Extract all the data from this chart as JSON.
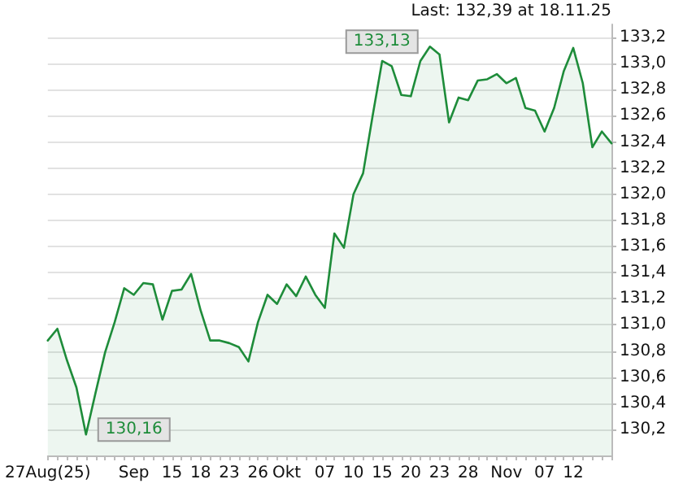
{
  "chart_data": {
    "type": "area",
    "categories": [
      "27Aug(25)",
      null,
      null,
      null,
      null,
      null,
      null,
      null,
      null,
      "Sep",
      null,
      null,
      null,
      "15",
      null,
      null,
      "18",
      null,
      null,
      "23",
      null,
      null,
      "26",
      null,
      null,
      "Okt",
      null,
      null,
      null,
      "07",
      null,
      null,
      "10",
      null,
      null,
      "15",
      null,
      null,
      "20",
      null,
      null,
      "23",
      null,
      null,
      "28",
      null,
      null,
      null,
      "Nov",
      null,
      null,
      null,
      "07",
      null,
      null,
      "12",
      null,
      null,
      null,
      null
    ],
    "series": [
      {
        "color": "#1e8c3a",
        "value_labels": [
          null,
          null,
          null,
          null,
          "130,16",
          null,
          null,
          null,
          null,
          null,
          null,
          null,
          null,
          null,
          null,
          null,
          null,
          null,
          null,
          null,
          null,
          null,
          null,
          null,
          null,
          null,
          null,
          null,
          null,
          null,
          null,
          null,
          null,
          null,
          null,
          null,
          null,
          null,
          null,
          null,
          "133,13",
          null,
          null,
          null,
          null,
          null,
          null,
          null,
          null,
          null,
          null,
          null,
          null,
          null,
          null,
          null,
          null,
          null,
          null,
          null
        ],
        "values": [
          130.88,
          130.97,
          130.73,
          130.52,
          130.16,
          130.48,
          130.79,
          131.02,
          131.28,
          131.23,
          131.32,
          131.31,
          131.04,
          131.26,
          131.27,
          131.39,
          131.11,
          130.88,
          130.88,
          130.86,
          130.83,
          130.72,
          131.02,
          131.23,
          131.16,
          131.31,
          131.22,
          131.37,
          131.23,
          131.13,
          131.7,
          131.59,
          132.0,
          132.16,
          132.6,
          133.02,
          132.98,
          132.76,
          132.75,
          133.02,
          133.13,
          133.07,
          132.55,
          132.74,
          132.72,
          132.87,
          132.88,
          132.92,
          132.85,
          132.89,
          132.66,
          132.64,
          132.48,
          132.66,
          132.94,
          133.12,
          132.85,
          132.36,
          132.48,
          132.39
        ]
      }
    ],
    "ylim": [
      130.0,
      133.3
    ],
    "yticks": [
      {
        "value": 130.2,
        "label": "130,2"
      },
      {
        "value": 130.4,
        "label": "130,4"
      },
      {
        "value": 130.6,
        "label": "130,6"
      },
      {
        "value": 130.8,
        "label": "130,8"
      },
      {
        "value": 131.0,
        "label": "131,0"
      },
      {
        "value": 131.2,
        "label": "131,2"
      },
      {
        "value": 131.4,
        "label": "131,4"
      },
      {
        "value": 131.6,
        "label": "131,6"
      },
      {
        "value": 131.8,
        "label": "131,8"
      },
      {
        "value": 132.0,
        "label": "132,0"
      },
      {
        "value": 132.2,
        "label": "132,2"
      },
      {
        "value": 132.4,
        "label": "132,4"
      },
      {
        "value": 132.6,
        "label": "132,6"
      },
      {
        "value": 132.8,
        "label": "132,8"
      },
      {
        "value": 133.0,
        "label": "133,0"
      },
      {
        "value": 133.2,
        "label": "133,2"
      }
    ],
    "grid": "y",
    "marker": "none",
    "line_style": "solid",
    "annotations": [
      "Last: 132,39 at 18.11.25"
    ]
  }
}
